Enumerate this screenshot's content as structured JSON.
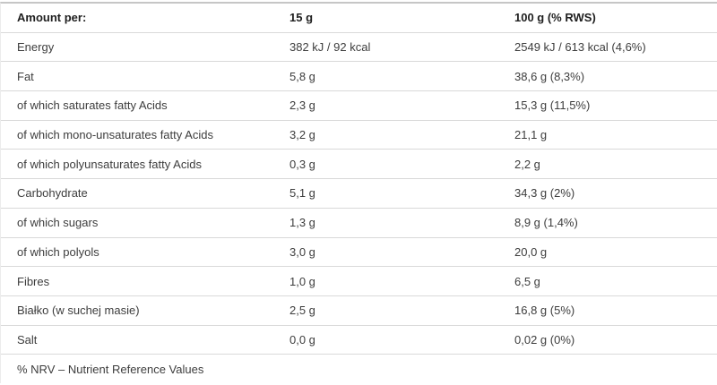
{
  "table": {
    "header": {
      "amount_per": "Amount per:",
      "col_15g": "15 g",
      "col_100g": "100 g (% RWS)"
    },
    "rows": [
      {
        "nutrient": "Energy",
        "per_15g": "382 kJ / 92 kcal",
        "per_100g": "2549 kJ / 613 kcal (4,6%)"
      },
      {
        "nutrient": "Fat",
        "per_15g": "5,8 g",
        "per_100g": "38,6 g (8,3%)"
      },
      {
        "nutrient": "of which saturates fatty Acids",
        "per_15g": "2,3 g",
        "per_100g": "15,3 g (11,5%)"
      },
      {
        "nutrient": "of which mono-unsaturates fatty Acids",
        "per_15g": "3,2 g",
        "per_100g": "21,1 g"
      },
      {
        "nutrient": "of which polyunsaturates fatty Acids",
        "per_15g": "0,3 g",
        "per_100g": "2,2 g"
      },
      {
        "nutrient": "Carbohydrate",
        "per_15g": "5,1 g",
        "per_100g": "34,3 g (2%)"
      },
      {
        "nutrient": "of which sugars",
        "per_15g": "1,3 g",
        "per_100g": "8,9 g (1,4%)"
      },
      {
        "nutrient": "of which polyols",
        "per_15g": "3,0 g",
        "per_100g": "20,0 g"
      },
      {
        "nutrient": "Fibres",
        "per_15g": "1,0 g",
        "per_100g": "6,5 g"
      },
      {
        "nutrient": "Białko (w suchej masie)",
        "per_15g": "2,5 g",
        "per_100g": "16,8 g (5%)"
      },
      {
        "nutrient": "Salt",
        "per_15g": "0,0 g",
        "per_100g": "0,02 g (0%)"
      }
    ],
    "footnote": "% NRV – Nutrient Reference Values"
  },
  "colors": {
    "background": "#ffffff",
    "top_border": "#c6c6c6",
    "row_border": "#d9d9d9",
    "left_border": "#ececec",
    "header_text": "#1f1f1f",
    "body_text": "#3d3d3d"
  }
}
